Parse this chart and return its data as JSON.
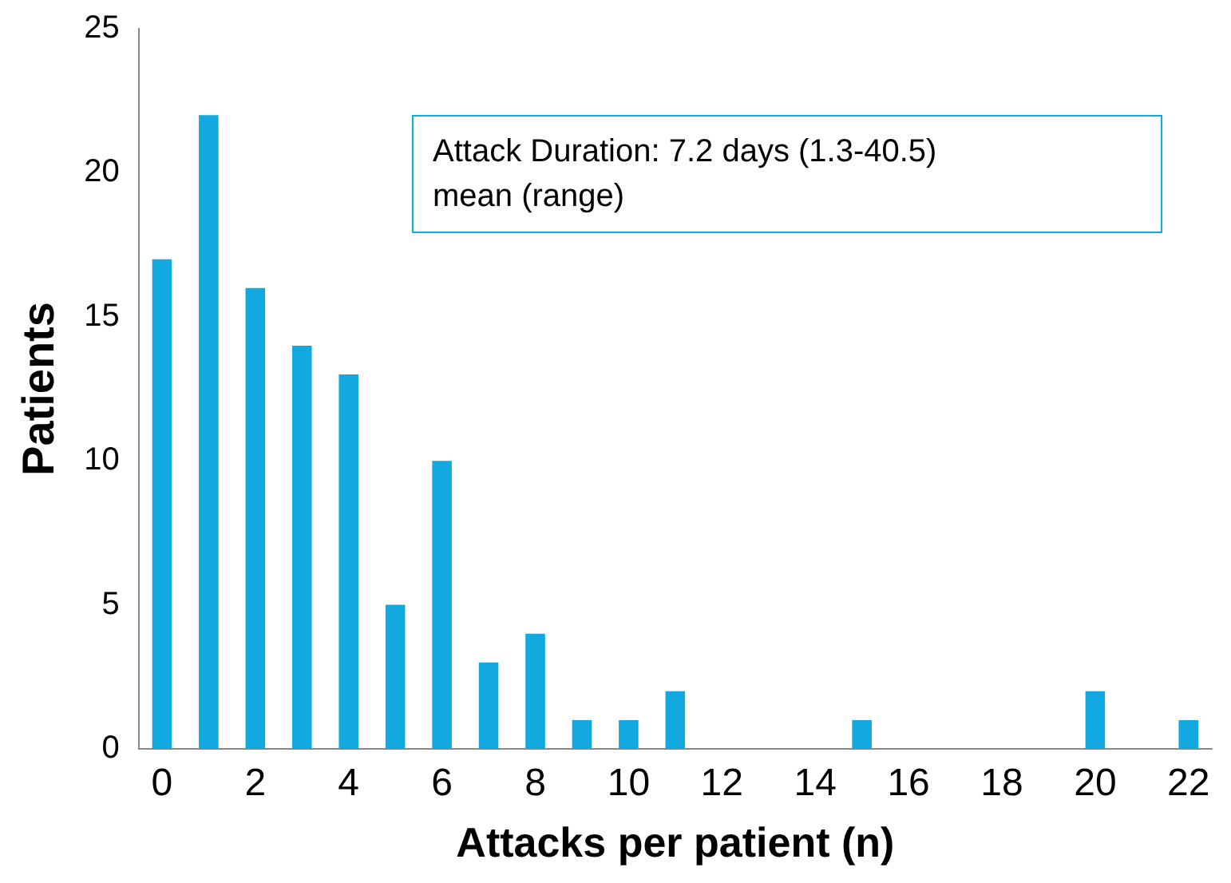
{
  "chart_data": {
    "type": "bar",
    "xlabel": "Attacks per patient (n)",
    "ylabel": "Patients",
    "categories": [
      "0",
      null,
      "2",
      null,
      "4",
      null,
      "6",
      null,
      "8",
      null,
      "10",
      null,
      "12",
      null,
      "14",
      null,
      "16",
      null,
      "18",
      null,
      "20",
      null,
      "22"
    ],
    "values": [
      17,
      22,
      16,
      14,
      13,
      5,
      10,
      3,
      4,
      1,
      1,
      2,
      0,
      0,
      0,
      1,
      0,
      0,
      0,
      0,
      2,
      0,
      1
    ],
    "color": "#12a8e0",
    "ylim": [
      0,
      25
    ],
    "yticks": [
      0,
      5,
      10,
      15,
      20,
      25
    ],
    "grid": false,
    "annotations": [
      "Attack Duration: 7.2 days (1.3-40.5)",
      "mean (range)"
    ]
  }
}
